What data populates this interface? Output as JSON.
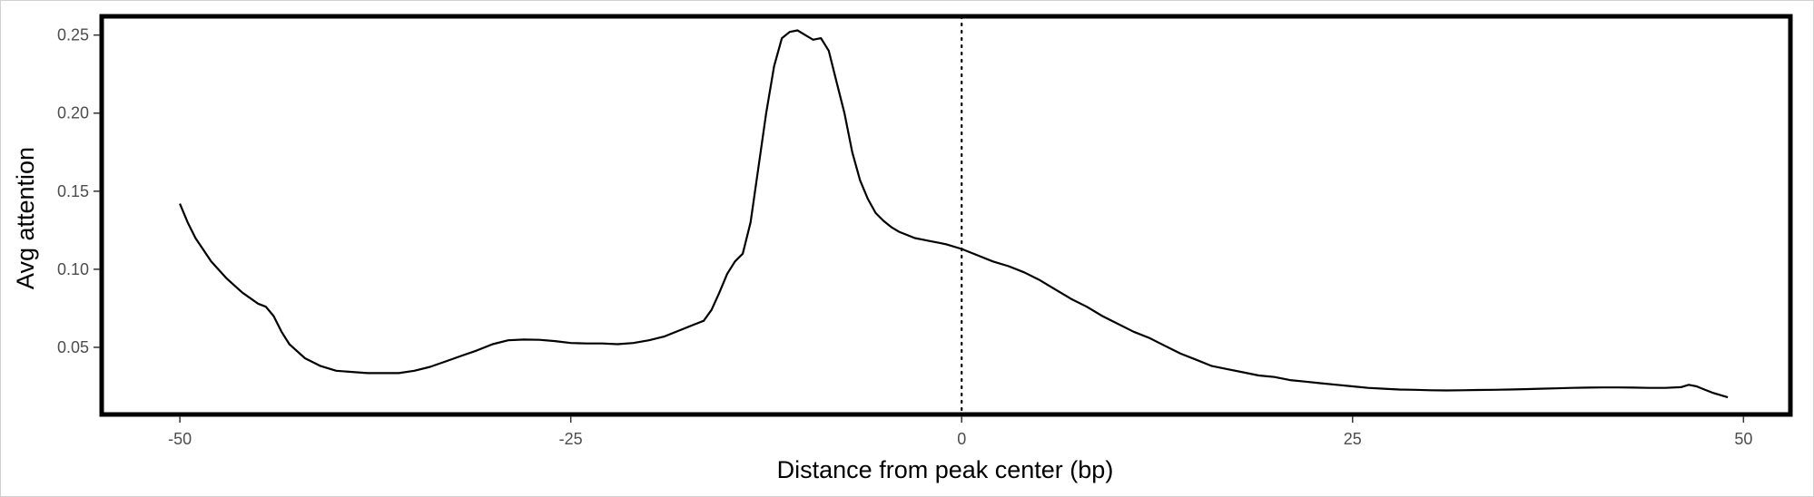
{
  "chart_data": {
    "type": "line",
    "title": "",
    "xlabel": "Distance from peak center (bp)",
    "ylabel": "Avg attention",
    "xlim": [
      -55,
      53
    ],
    "ylim": [
      0.007,
      0.262
    ],
    "x_ticks": [
      -50,
      -25,
      0,
      25,
      50
    ],
    "x_tick_labels": [
      "-50",
      "-25",
      "0",
      "25",
      "50"
    ],
    "y_ticks": [
      0.05,
      0.1,
      0.15,
      0.2,
      0.25
    ],
    "y_tick_labels": [
      "0.05",
      "0.10",
      "0.15",
      "0.20",
      "0.25"
    ],
    "grid": false,
    "reference_line": {
      "x": 0,
      "style": "dotted"
    },
    "series": [
      {
        "color": "#000000",
        "x": [
          -50,
          -49.5,
          -49,
          -48,
          -47,
          -46,
          -45,
          -44.5,
          -44,
          -43.5,
          -43,
          -42,
          -41,
          -40,
          -38,
          -36,
          -35,
          -34,
          -33,
          -32,
          -31,
          -30,
          -29,
          -28,
          -27,
          -26,
          -25,
          -24,
          -23,
          -22,
          -21,
          -20,
          -19,
          -18,
          -17,
          -16.5,
          -16,
          -15.5,
          -15,
          -14.5,
          -14,
          -13.5,
          -13,
          -12.5,
          -12,
          -11.5,
          -11,
          -10.5,
          -10,
          -9.5,
          -9,
          -8.5,
          -8,
          -7.5,
          -7,
          -6.5,
          -6,
          -5.5,
          -5,
          -4.5,
          -4,
          -3.5,
          -3,
          -2.5,
          -2,
          -1.5,
          -1,
          0,
          1,
          2,
          3,
          4,
          5,
          6,
          7,
          8,
          9,
          10,
          11,
          12,
          13,
          14,
          15,
          16,
          17,
          18,
          19,
          20,
          21,
          22,
          23,
          24,
          25,
          26,
          27,
          28,
          29,
          30,
          31,
          32,
          33,
          34,
          35,
          36,
          37,
          38,
          39,
          40,
          41,
          42,
          43,
          44,
          45,
          46,
          46.5,
          47,
          47.5,
          48,
          49
        ],
        "y": [
          0.142,
          0.13,
          0.12,
          0.105,
          0.094,
          0.085,
          0.078,
          0.076,
          0.07,
          0.06,
          0.052,
          0.043,
          0.038,
          0.035,
          0.0335,
          0.0335,
          0.035,
          0.0375,
          0.041,
          0.0445,
          0.048,
          0.052,
          0.0545,
          0.055,
          0.0548,
          0.054,
          0.0528,
          0.0525,
          0.0525,
          0.052,
          0.0528,
          0.0545,
          0.057,
          0.061,
          0.065,
          0.067,
          0.074,
          0.085,
          0.097,
          0.105,
          0.11,
          0.13,
          0.165,
          0.2,
          0.23,
          0.248,
          0.252,
          0.253,
          0.25,
          0.247,
          0.248,
          0.24,
          0.22,
          0.2,
          0.175,
          0.157,
          0.145,
          0.136,
          0.131,
          0.127,
          0.124,
          0.122,
          0.12,
          0.119,
          0.118,
          0.117,
          0.116,
          0.113,
          0.109,
          0.105,
          0.102,
          0.098,
          0.093,
          0.087,
          0.081,
          0.076,
          0.07,
          0.065,
          0.06,
          0.056,
          0.051,
          0.046,
          0.042,
          0.038,
          0.036,
          0.034,
          0.032,
          0.031,
          0.029,
          0.028,
          0.027,
          0.026,
          0.025,
          0.024,
          0.0235,
          0.023,
          0.0228,
          0.0225,
          0.0224,
          0.0225,
          0.0227,
          0.0228,
          0.023,
          0.0232,
          0.0235,
          0.0237,
          0.024,
          0.0242,
          0.0243,
          0.0243,
          0.0242,
          0.024,
          0.024,
          0.0245,
          0.026,
          0.025,
          0.023,
          0.021,
          0.018
        ]
      }
    ]
  }
}
